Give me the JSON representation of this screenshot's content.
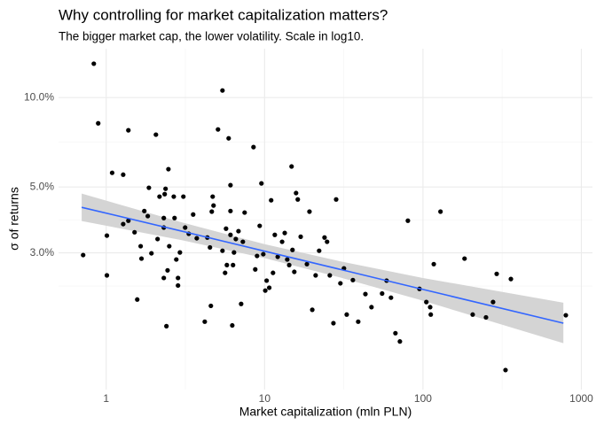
{
  "chart_data": {
    "type": "scatter",
    "title": "Why controlling for market capitalization matters?",
    "subtitle": "The bigger market cap, the lower volatility. Scale in log10.",
    "x_label": "Market capitalization (mln PLN)",
    "y_label": "σ of returns",
    "log_x": true,
    "log_y": true,
    "grid": true,
    "color": "#000000",
    "xlim": [
      0.5,
      1175
    ],
    "ylim": [
      1.04,
      14.6
    ],
    "xticks": [
      1,
      10,
      100,
      1000
    ],
    "yticks": [
      {
        "value": 3,
        "label": "3.0%"
      },
      {
        "value": 5,
        "label": "5.0%"
      },
      {
        "value": 10,
        "label": "10.0%"
      }
    ],
    "x_minor_grid": [
      3.16,
      31.6,
      316
    ],
    "y_minor_grid": [
      2.32,
      3.87,
      7.07
    ],
    "x": [
      0.835,
      0.89,
      0.715,
      1.01,
      1.01,
      1.09,
      1.28,
      1.28,
      1.38,
      1.38,
      1.57,
      1.51,
      1.65,
      1.67,
      1.74,
      1.83,
      1.86,
      1.93,
      2.06,
      2.11,
      2.17,
      2.31,
      2.31,
      2.31,
      2.34,
      2.37,
      2.4,
      2.44,
      2.47,
      2.5,
      2.67,
      2.7,
      2.77,
      2.84,
      2.84,
      2.92,
      3.07,
      3.15,
      3.32,
      3.54,
      3.73,
      4.19,
      4.35,
      4.52,
      4.58,
      4.64,
      4.7,
      4.76,
      5.08,
      5.42,
      5.42,
      5.63,
      5.71,
      5.78,
      5.93,
      6.09,
      6.09,
      6.09,
      6.25,
      6.32,
      6.41,
      6.58,
      6.84,
      7.11,
      7.29,
      7.48,
      8.51,
      8.73,
      8.96,
      9.31,
      9.55,
      9.81,
      10.1,
      10.3,
      10.7,
      11.0,
      11.3,
      11.6,
      12.1,
      12.9,
      13.4,
      13.9,
      14.3,
      14.8,
      15.0,
      15.4,
      15.8,
      16.2,
      16.9,
      18.5,
      19.2,
      20.0,
      21.0,
      22.1,
      23.9,
      24.8,
      25.8,
      27.2,
      28.3,
      30.1,
      31.7,
      33.0,
      36.1,
      39.0,
      43.3,
      47.3,
      55.2,
      58.9,
      62.8,
      67.0,
      71.5,
      80.3,
      95.0,
      105,
      111,
      112,
      117,
      129,
      183,
      206,
      250,
      277,
      292,
      332,
      359,
      798
    ],
    "values": [
      13.0,
      8.19,
      2.95,
      3.43,
      2.52,
      5.58,
      5.5,
      3.75,
      7.76,
      3.85,
      2.09,
      3.52,
      3.16,
      2.87,
      4.15,
      3.99,
      4.97,
      2.99,
      7.5,
      3.34,
      4.64,
      3.65,
      3.93,
      2.47,
      4.73,
      4.93,
      1.7,
      2.62,
      5.74,
      3.16,
      4.64,
      3.93,
      2.85,
      2.47,
      2.33,
      3.01,
      4.64,
      3.65,
      3.48,
      4.04,
      3.36,
      1.76,
      3.38,
      3.13,
      1.99,
      4.13,
      4.64,
      4.33,
      7.81,
      10.56,
      3.05,
      2.57,
      3.62,
      2.73,
      7.29,
      5.07,
      4.15,
      3.45,
      1.71,
      2.73,
      3.01,
      3.34,
      3.55,
      2.02,
      3.27,
      4.1,
      6.81,
      2.64,
      2.93,
      3.7,
      5.14,
      2.97,
      2.24,
      2.42,
      2.29,
      4.51,
      2.57,
      3.45,
      2.91,
      3.27,
      3.5,
      2.85,
      2.73,
      5.86,
      3.07,
      2.59,
      4.77,
      4.54,
      3.4,
      2.75,
      4.13,
      1.93,
      2.52,
      3.05,
      3.38,
      3.27,
      2.52,
      1.74,
      4.54,
      2.37,
      2.66,
      1.86,
      2.43,
      1.76,
      2.18,
      1.97,
      2.19,
      2.42,
      2.12,
      1.61,
      1.51,
      3.85,
      2.27,
      2.05,
      1.97,
      1.86,
      2.75,
      4.13,
      2.87,
      1.86,
      1.82,
      2.05,
      2.55,
      1.21,
      2.45,
      1.85
    ],
    "fit": {
      "color": "#3366ff",
      "band_color": "#d4d4d4",
      "x": [
        0.7,
        3,
        10,
        30,
        100,
        770
      ],
      "values": [
        4.27,
        3.55,
        3.04,
        2.64,
        2.26,
        1.74
      ],
      "lower": [
        3.84,
        3.31,
        2.88,
        2.48,
        2.07,
        1.49
      ],
      "upper": [
        4.75,
        3.8,
        3.21,
        2.81,
        2.47,
        2.04
      ]
    }
  }
}
